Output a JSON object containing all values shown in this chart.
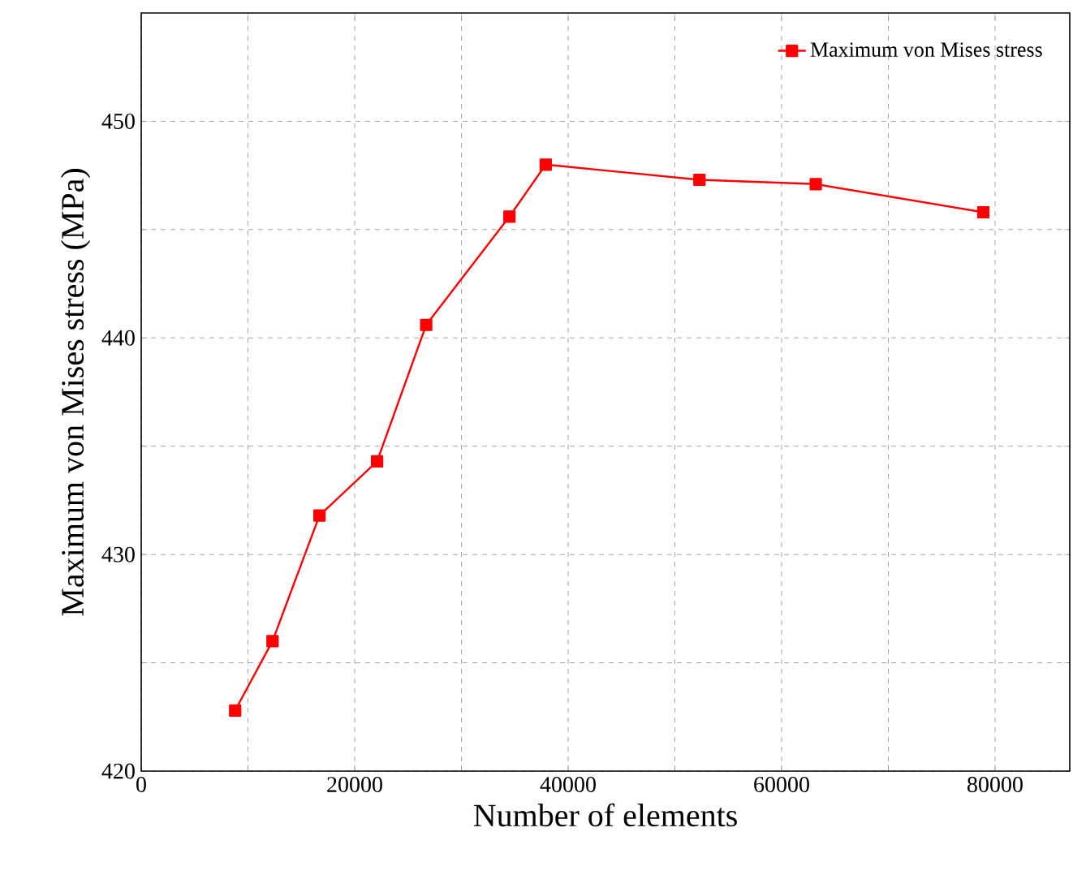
{
  "chart_data": {
    "type": "line",
    "xlabel": "Number of elements",
    "ylabel": "Maximum von Mises stress (MPa)",
    "x": [
      8800,
      12300,
      16700,
      22100,
      26700,
      34500,
      37900,
      52300,
      63200,
      78900
    ],
    "series": [
      {
        "name": "Maximum von Mises stress",
        "color": "#ff0000",
        "values": [
          422.8,
          426.0,
          431.8,
          434.3,
          440.6,
          445.6,
          448.0,
          447.3,
          447.1,
          445.8
        ]
      }
    ],
    "xlim": [
      0,
      87000
    ],
    "ylim": [
      420,
      455
    ],
    "xticks": [
      0,
      {
        "value": 10000,
        "label": null
      },
      20000,
      {
        "value": 30000,
        "label": null
      },
      40000,
      {
        "value": 50000,
        "label": null
      },
      60000,
      {
        "value": 70000,
        "label": null
      },
      80000
    ],
    "yticks": [
      420,
      {
        "value": 425,
        "label": null
      },
      430,
      {
        "value": 435,
        "label": null
      },
      440,
      {
        "value": 445,
        "label": null
      },
      450
    ],
    "grid": true,
    "legend": "top right",
    "marker": "square",
    "line_style": "solid"
  }
}
